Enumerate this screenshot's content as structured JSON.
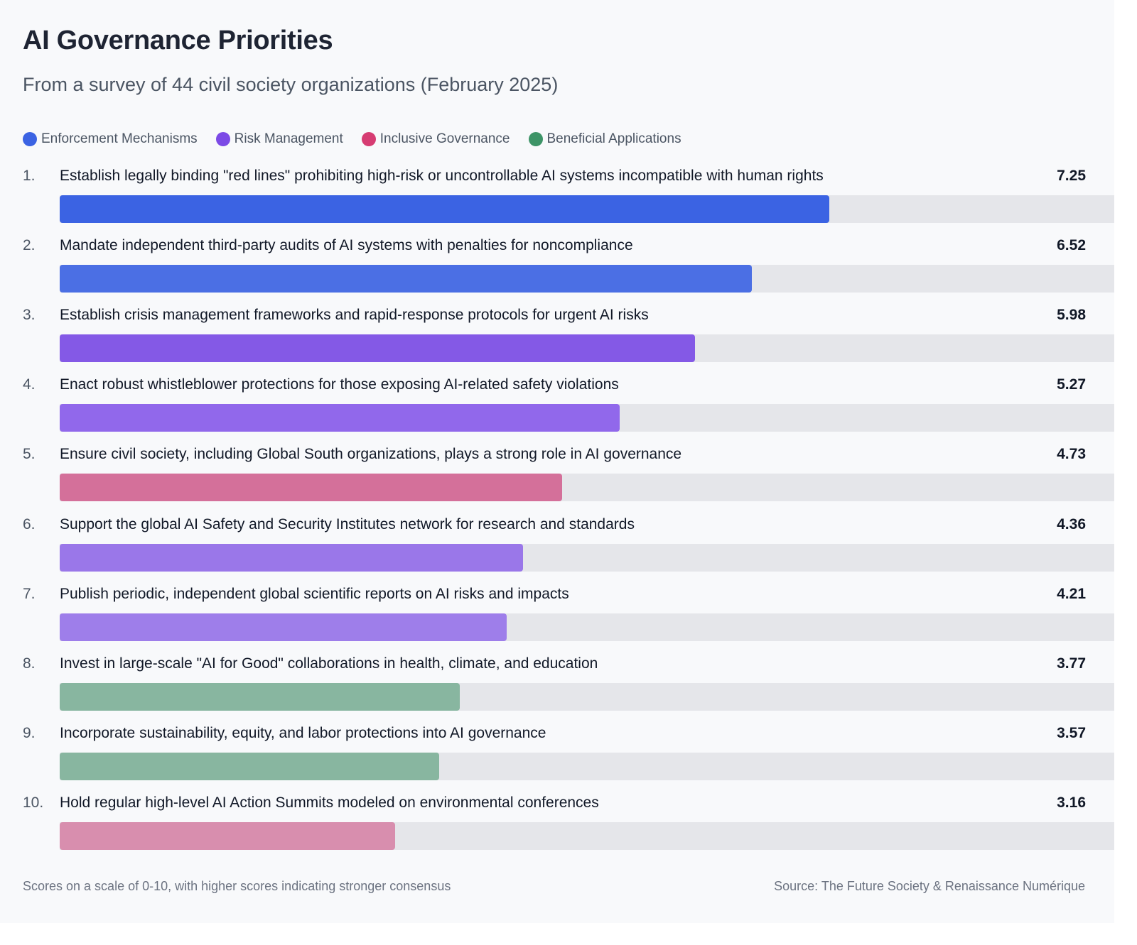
{
  "title": "AI Governance Priorities",
  "subtitle": "From a survey of 44 civil society organizations (February 2025)",
  "legend": [
    {
      "label": "Enforcement Mechanisms",
      "color": "#3b63e3"
    },
    {
      "label": "Risk Management",
      "color": "#7c4ae6"
    },
    {
      "label": "Inclusive Governance",
      "color": "#d63c72"
    },
    {
      "label": "Beneficial Applications",
      "color": "#3d9467"
    }
  ],
  "footer": {
    "note": "Scores on a scale of 0-10, with higher scores indicating stronger consensus",
    "source": "Source: The Future Society & Renaissance Numérique"
  },
  "chart_data": {
    "type": "bar",
    "orientation": "horizontal",
    "title": "AI Governance Priorities",
    "subtitle": "From a survey of 44 civil society organizations (February 2025)",
    "xlim": [
      0,
      10
    ],
    "grid": false,
    "legend_position": "top-left",
    "categories": [
      "Establish legally binding \"red lines\" prohibiting high-risk or uncontrollable AI systems incompatible with human rights",
      "Mandate independent third-party audits of AI systems with penalties for noncompliance",
      "Establish crisis management frameworks and rapid-response protocols for urgent AI risks",
      "Enact robust whistleblower protections for those exposing AI-related safety violations",
      "Ensure civil society, including Global South organizations, plays a strong role in AI governance",
      "Support the global AI Safety and Security Institutes network for research and standards",
      "Publish periodic, independent global scientific reports on AI risks and impacts",
      "Invest in large-scale \"AI for Good\" collaborations in health, climate, and education",
      "Incorporate sustainability, equity, and labor protections into AI governance",
      "Hold regular high-level AI Action Summits modeled on environmental conferences"
    ],
    "ranks": [
      "1.",
      "2.",
      "3.",
      "4.",
      "5.",
      "6.",
      "7.",
      "8.",
      "9.",
      "10."
    ],
    "values": [
      7.25,
      6.52,
      5.98,
      5.27,
      4.73,
      4.36,
      4.21,
      3.77,
      3.57,
      3.16
    ],
    "value_labels": [
      "7.25",
      "6.52",
      "5.98",
      "5.27",
      "4.73",
      "4.36",
      "4.21",
      "3.77",
      "3.57",
      "3.16"
    ],
    "groups": [
      "Enforcement Mechanisms",
      "Enforcement Mechanisms",
      "Risk Management",
      "Risk Management",
      "Inclusive Governance",
      "Risk Management",
      "Risk Management",
      "Beneficial Applications",
      "Beneficial Applications",
      "Inclusive Governance"
    ],
    "bar_colors": [
      "#3b63e3",
      "#4b6fe4",
      "#8459e6",
      "#9168eb",
      "#d4709a",
      "#9a77e9",
      "#9e7eea",
      "#88b6a0",
      "#88b6a0",
      "#d88eae"
    ]
  }
}
